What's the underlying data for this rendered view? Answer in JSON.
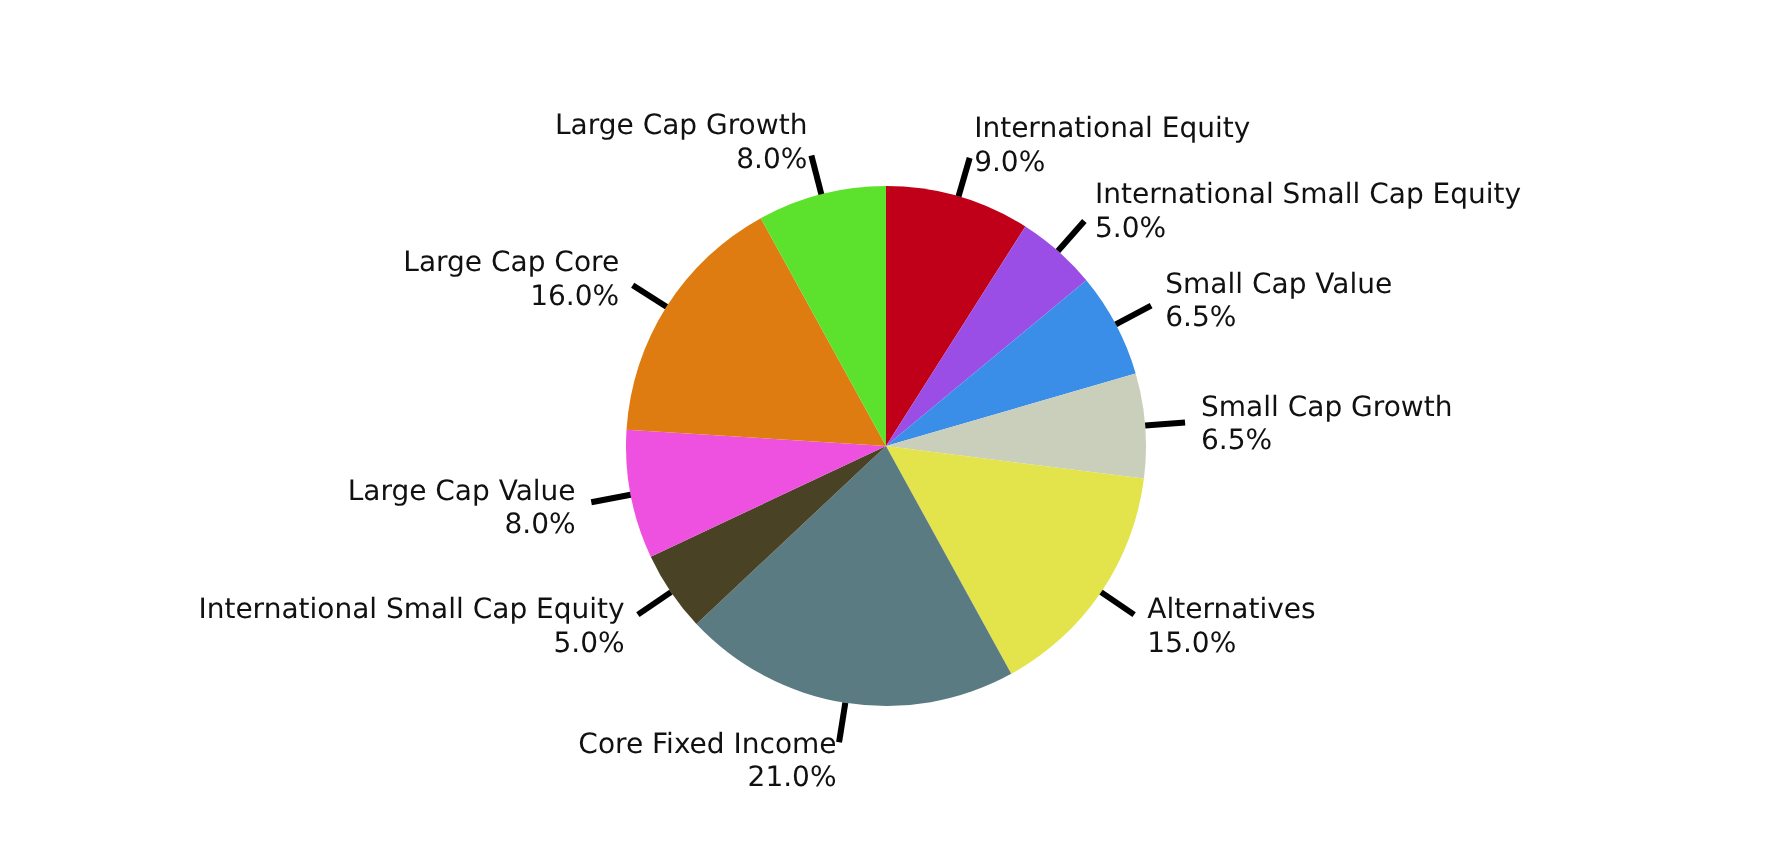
{
  "chart_data": {
    "type": "pie",
    "categories": [
      "International Equity",
      "International Small Cap Equity",
      "Small Cap Value",
      "Small Cap Growth",
      "Alternatives",
      "Core Fixed Income",
      "International Small Cap Equity",
      "Large Cap Value",
      "Large Cap Core",
      "Large Cap Growth"
    ],
    "values": [
      9.0,
      5.0,
      6.5,
      6.5,
      15.0,
      21.0,
      5.0,
      8.0,
      16.0,
      8.0
    ],
    "value_labels": [
      "9.0%",
      "5.0%",
      "6.5%",
      "6.5%",
      "15.0%",
      "21.0%",
      "5.0%",
      "8.0%",
      "16.0%",
      "8.0%"
    ],
    "colors": [
      "#c00018",
      "#9a4ee6",
      "#3a8ee8",
      "#c9cfba",
      "#e3e34c",
      "#5b7b82",
      "#4a4224",
      "#ee50e0",
      "#de7c12",
      "#5ce22c"
    ],
    "legend": false
  }
}
